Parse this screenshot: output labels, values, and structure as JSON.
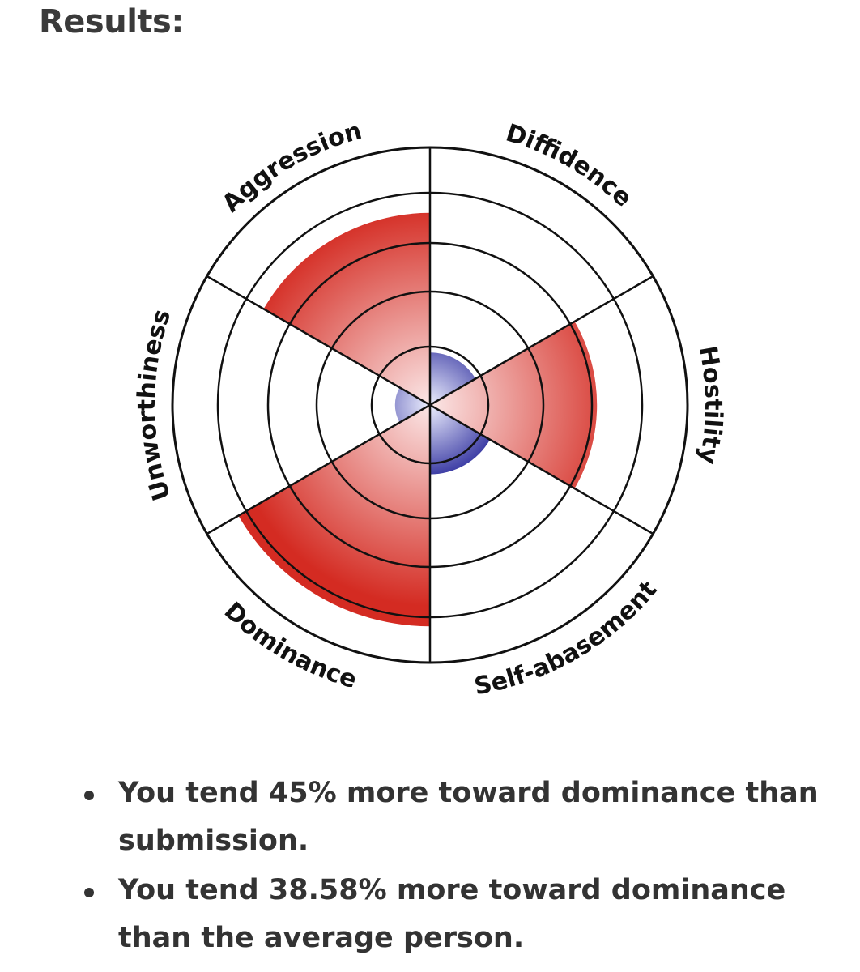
{
  "heading": "Results:",
  "chart_data": {
    "type": "polar-area",
    "max": 5,
    "segments": [
      {
        "label": "Diffidence",
        "value": 0.9,
        "color": "blue"
      },
      {
        "label": "Hostility",
        "value": 3.1,
        "color": "red"
      },
      {
        "label": "Self-abasement",
        "value": 1.2,
        "color": "blue"
      },
      {
        "label": "Dominance",
        "value": 4.2,
        "color": "red"
      },
      {
        "label": "Unworthiness",
        "value": 0.6,
        "color": "blue"
      },
      {
        "label": "Aggression",
        "value": 3.6,
        "color": "red"
      }
    ],
    "colors": {
      "red_center": "#fbe7e7",
      "red_edge": "#d42b22",
      "blue_center": "#eef0ff",
      "blue_edge": "#2c2c9c",
      "grid": "#111111"
    }
  },
  "results": [
    "You tend 45% more toward dominance than submission.",
    "You tend 38.58% more toward dominance than the average person."
  ]
}
